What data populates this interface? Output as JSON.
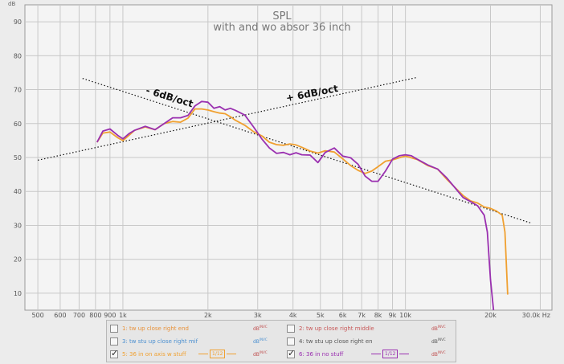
{
  "chart_data": {
    "type": "line",
    "title": "SPL",
    "subtitle": "with and wo absor 36 inch",
    "y_unit": "dB",
    "x_unit": "Hz",
    "xscale": "log",
    "xlim": [
      450,
      33000
    ],
    "ylim": [
      5,
      95
    ],
    "grid": true,
    "y_ticks": [
      10,
      20,
      30,
      40,
      50,
      60,
      70,
      80,
      90
    ],
    "y_tick_labels": [
      "10",
      "20",
      "30",
      "40",
      "50",
      "60",
      "70",
      "80",
      "90"
    ],
    "x_ticks": [
      500,
      600,
      700,
      800,
      900,
      1000,
      2000,
      3000,
      4000,
      5000,
      6000,
      7000,
      8000,
      9000,
      10000,
      20000,
      30000
    ],
    "x_tick_labels": [
      "500",
      "600",
      "700",
      "800",
      "900",
      "1k",
      "2k",
      "3k",
      "4k",
      "5k",
      "6k",
      "7k",
      "8k",
      "9k",
      "10k",
      "20k",
      "30.0k Hz"
    ],
    "series": [
      {
        "name": "5: 36 in on axis w stuff",
        "color": "#f0a030",
        "points": [
          [
            810,
            54.5
          ],
          [
            850,
            57.2
          ],
          [
            900,
            57.5
          ],
          [
            960,
            55.8
          ],
          [
            1000,
            55.0
          ],
          [
            1050,
            56.5
          ],
          [
            1100,
            58.0
          ],
          [
            1200,
            59.0
          ],
          [
            1300,
            58.2
          ],
          [
            1400,
            60.0
          ],
          [
            1500,
            60.6
          ],
          [
            1600,
            60.4
          ],
          [
            1700,
            61.6
          ],
          [
            1800,
            64.3
          ],
          [
            1900,
            64.3
          ],
          [
            2000,
            64.0
          ],
          [
            2100,
            63.5
          ],
          [
            2200,
            63.1
          ],
          [
            2300,
            62.9
          ],
          [
            2400,
            62.0
          ],
          [
            2500,
            61.0
          ],
          [
            2700,
            59.5
          ],
          [
            2900,
            57.6
          ],
          [
            3100,
            56.4
          ],
          [
            3300,
            54.5
          ],
          [
            3500,
            53.8
          ],
          [
            3700,
            53.6
          ],
          [
            3900,
            54.0
          ],
          [
            4100,
            53.7
          ],
          [
            4300,
            53.0
          ],
          [
            4600,
            51.9
          ],
          [
            4900,
            51.3
          ],
          [
            5200,
            52.0
          ],
          [
            5600,
            51.6
          ],
          [
            6000,
            49.6
          ],
          [
            6400,
            47.6
          ],
          [
            6800,
            46.2
          ],
          [
            7200,
            45.3
          ],
          [
            7600,
            46.0
          ],
          [
            8000,
            47.3
          ],
          [
            8500,
            48.9
          ],
          [
            9000,
            49.3
          ],
          [
            9500,
            49.9
          ],
          [
            10000,
            50.4
          ],
          [
            10500,
            49.9
          ],
          [
            11000,
            49.4
          ],
          [
            12000,
            47.6
          ],
          [
            13000,
            46.6
          ],
          [
            14000,
            43.6
          ],
          [
            15000,
            41.1
          ],
          [
            16000,
            38.8
          ],
          [
            17000,
            37.2
          ],
          [
            18000,
            36.6
          ],
          [
            19000,
            35.4
          ],
          [
            20000,
            35.0
          ],
          [
            21000,
            34.2
          ],
          [
            22000,
            33.0
          ],
          [
            22500,
            28.0
          ],
          [
            23000,
            9.6
          ]
        ]
      },
      {
        "name": "6: 36 in no stuff",
        "color": "#9a30b0",
        "points": [
          [
            810,
            54.5
          ],
          [
            850,
            57.8
          ],
          [
            900,
            58.4
          ],
          [
            960,
            56.5
          ],
          [
            1000,
            55.5
          ],
          [
            1050,
            57.0
          ],
          [
            1100,
            58.0
          ],
          [
            1200,
            59.2
          ],
          [
            1300,
            58.2
          ],
          [
            1400,
            60.0
          ],
          [
            1500,
            61.7
          ],
          [
            1600,
            61.7
          ],
          [
            1700,
            62.4
          ],
          [
            1800,
            65.2
          ],
          [
            1900,
            66.5
          ],
          [
            2000,
            66.3
          ],
          [
            2100,
            64.5
          ],
          [
            2200,
            65.0
          ],
          [
            2300,
            64.0
          ],
          [
            2400,
            64.5
          ],
          [
            2500,
            63.9
          ],
          [
            2700,
            62.5
          ],
          [
            2900,
            59.0
          ],
          [
            3100,
            55.5
          ],
          [
            3300,
            52.8
          ],
          [
            3500,
            51.2
          ],
          [
            3700,
            51.5
          ],
          [
            3900,
            50.8
          ],
          [
            4100,
            51.4
          ],
          [
            4300,
            50.8
          ],
          [
            4600,
            50.7
          ],
          [
            4900,
            48.5
          ],
          [
            5200,
            51.5
          ],
          [
            5600,
            52.8
          ],
          [
            6000,
            50.4
          ],
          [
            6400,
            49.9
          ],
          [
            6800,
            48.0
          ],
          [
            7200,
            44.5
          ],
          [
            7600,
            43.0
          ],
          [
            8000,
            43.0
          ],
          [
            8500,
            46.0
          ],
          [
            9000,
            49.5
          ],
          [
            9500,
            50.5
          ],
          [
            10000,
            50.8
          ],
          [
            10500,
            50.5
          ],
          [
            11000,
            49.5
          ],
          [
            12000,
            47.8
          ],
          [
            13000,
            46.6
          ],
          [
            14000,
            44.0
          ],
          [
            15000,
            41.0
          ],
          [
            16000,
            38.2
          ],
          [
            17000,
            37.0
          ],
          [
            18000,
            35.8
          ],
          [
            19000,
            33.0
          ],
          [
            19500,
            28.0
          ],
          [
            20000,
            14.0
          ],
          [
            20500,
            4.0
          ]
        ]
      }
    ],
    "annotations": [
      {
        "text": "- 6dB/oct",
        "line": [
          [
            720,
            73.3
          ],
          [
            28000,
            30.6
          ]
        ],
        "label_at": [
          1200,
          69
        ],
        "rotate": 17
      },
      {
        "text": "+ 6dB/oct",
        "line": [
          [
            500,
            49.2
          ],
          [
            11000,
            73.6
          ]
        ],
        "label_at": [
          3800,
          66.5
        ],
        "rotate": -11
      }
    ]
  },
  "legend": {
    "items": [
      {
        "id": "1",
        "label": "1: tw up close right end",
        "color": "#e8923a",
        "checked": false,
        "tag": "dB",
        "tag_sup": "INVC"
      },
      {
        "id": "2",
        "label": "2: tw up close right middle",
        "color": "#c85858",
        "checked": false,
        "tag": "dB",
        "tag_sup": "INVC"
      },
      {
        "id": "3",
        "label": "3: tw stu up close right mif",
        "color": "#4a8fd0",
        "checked": false,
        "tag": "dB",
        "tag_sup": "INVC"
      },
      {
        "id": "4",
        "label": "4: tw stu up close right en",
        "color": "#555555",
        "checked": false,
        "tag": "dB",
        "tag_sup": "INVC"
      },
      {
        "id": "5",
        "label": "5: 36 in on axis w stuff",
        "color": "#f0a030",
        "checked": true,
        "tag": "dB",
        "tag_sup": "INVC",
        "smoothing": "1/12"
      },
      {
        "id": "6",
        "label": "6: 36 in no stuff",
        "color": "#9a30b0",
        "checked": true,
        "tag": "dB",
        "tag_sup": "INVC",
        "smoothing": "1/12"
      }
    ]
  }
}
